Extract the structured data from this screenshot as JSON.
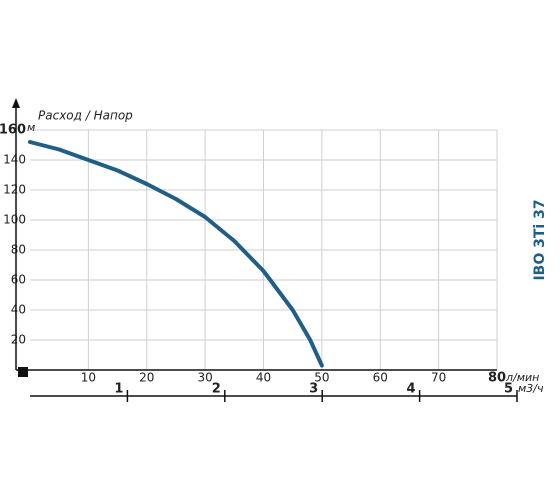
{
  "chart_data": {
    "type": "line",
    "y_label": "Расход / Напор",
    "side_title": "IBO 3Ti 37",
    "y_unit": "м",
    "x_unit": "л/мин",
    "x2_unit": "м3/ч",
    "x": [
      0,
      5,
      10,
      15,
      20,
      25,
      30,
      35,
      40,
      45,
      48,
      50
    ],
    "series": [
      {
        "name": "IBO 3Ti 37",
        "color": "#1f5f87",
        "values": [
          152,
          147,
          140,
          133,
          124,
          114,
          102,
          86,
          66,
          40,
          20,
          3
        ]
      }
    ],
    "xlim": [
      0,
      80
    ],
    "xticks": [
      10,
      20,
      30,
      40,
      50,
      60,
      70,
      80
    ],
    "ylim": [
      0,
      160
    ],
    "yticks": [
      20,
      40,
      60,
      80,
      100,
      120,
      140,
      160
    ],
    "x2lim": [
      0,
      5
    ],
    "x2ticks": [
      1,
      2,
      3,
      4,
      5
    ],
    "grid": true
  }
}
